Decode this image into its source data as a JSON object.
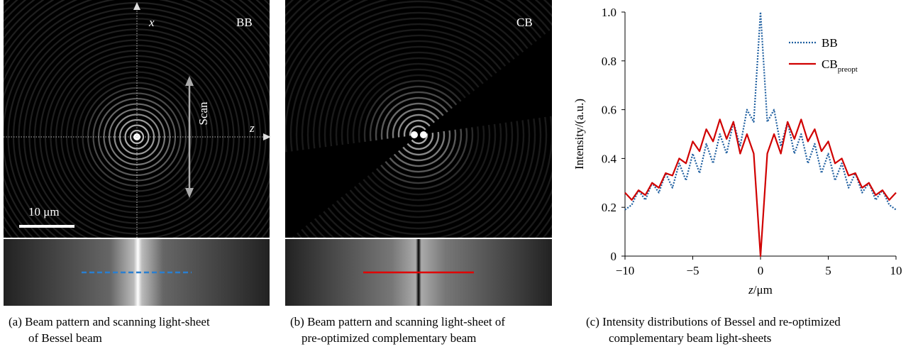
{
  "panels": [
    {
      "axis_x": "x",
      "axis_z": "z",
      "tag": "BB",
      "scan": "Scan",
      "scale_bar": "10 μm",
      "caption": [
        "(a) Beam pattern and scanning light-sheet",
        "of Bessel beam"
      ]
    },
    {
      "tag": "CB",
      "caption": [
        "(b) Beam pattern and scanning light-sheet of",
        "pre-optimized complementary beam"
      ]
    }
  ],
  "chart_data": {
    "type": "line",
    "caption": [
      "(c) Intensity distributions of Bessel and re-optimized",
      "complementary beam light-sheets"
    ],
    "ylabel": "Intensity/(a.u.)",
    "xlabel_var": "z",
    "xlabel_unit": "/μm",
    "x": [
      -10,
      -9.5,
      -9,
      -8.5,
      -8,
      -7.5,
      -7,
      -6.5,
      -6,
      -5.5,
      -5,
      -4.5,
      -4,
      -3.5,
      -3,
      -2.5,
      -2,
      -1.5,
      -1,
      -0.5,
      0,
      0.5,
      1,
      1.5,
      2,
      2.5,
      3,
      3.5,
      4,
      4.5,
      5,
      5.5,
      6,
      6.5,
      7,
      7.5,
      8,
      8.5,
      9,
      9.5,
      10
    ],
    "series": [
      {
        "name": "BB",
        "color": "#1f5fa0",
        "linestyle": "dotted",
        "values": [
          0.19,
          0.21,
          0.27,
          0.23,
          0.3,
          0.26,
          0.34,
          0.28,
          0.38,
          0.31,
          0.42,
          0.34,
          0.46,
          0.38,
          0.5,
          0.42,
          0.55,
          0.45,
          0.6,
          0.55,
          1.0,
          0.55,
          0.6,
          0.45,
          0.55,
          0.42,
          0.5,
          0.38,
          0.46,
          0.34,
          0.42,
          0.31,
          0.38,
          0.28,
          0.34,
          0.26,
          0.3,
          0.23,
          0.27,
          0.21,
          0.19
        ]
      },
      {
        "name": "CB",
        "name_subscript": "preopt",
        "color": "#d00000",
        "linestyle": "solid",
        "values": [
          0.26,
          0.23,
          0.27,
          0.25,
          0.3,
          0.28,
          0.34,
          0.33,
          0.4,
          0.38,
          0.47,
          0.43,
          0.52,
          0.47,
          0.56,
          0.48,
          0.55,
          0.42,
          0.5,
          0.42,
          0,
          0.42,
          0.5,
          0.42,
          0.55,
          0.48,
          0.56,
          0.47,
          0.52,
          0.43,
          0.47,
          0.38,
          0.4,
          0.33,
          0.34,
          0.28,
          0.3,
          0.25,
          0.27,
          0.23,
          0.26
        ]
      }
    ],
    "xlim": [
      -10,
      10
    ],
    "xticks": [
      {
        "value": -10,
        "label": "−10"
      },
      {
        "value": -5,
        "label": "−5"
      },
      0,
      5,
      10
    ],
    "ylim": [
      0,
      1
    ],
    "yticks": [
      0,
      0.2,
      0.4,
      0.6,
      0.8,
      {
        "value": 1,
        "label": "1.0"
      }
    ],
    "legend": "upper right"
  }
}
